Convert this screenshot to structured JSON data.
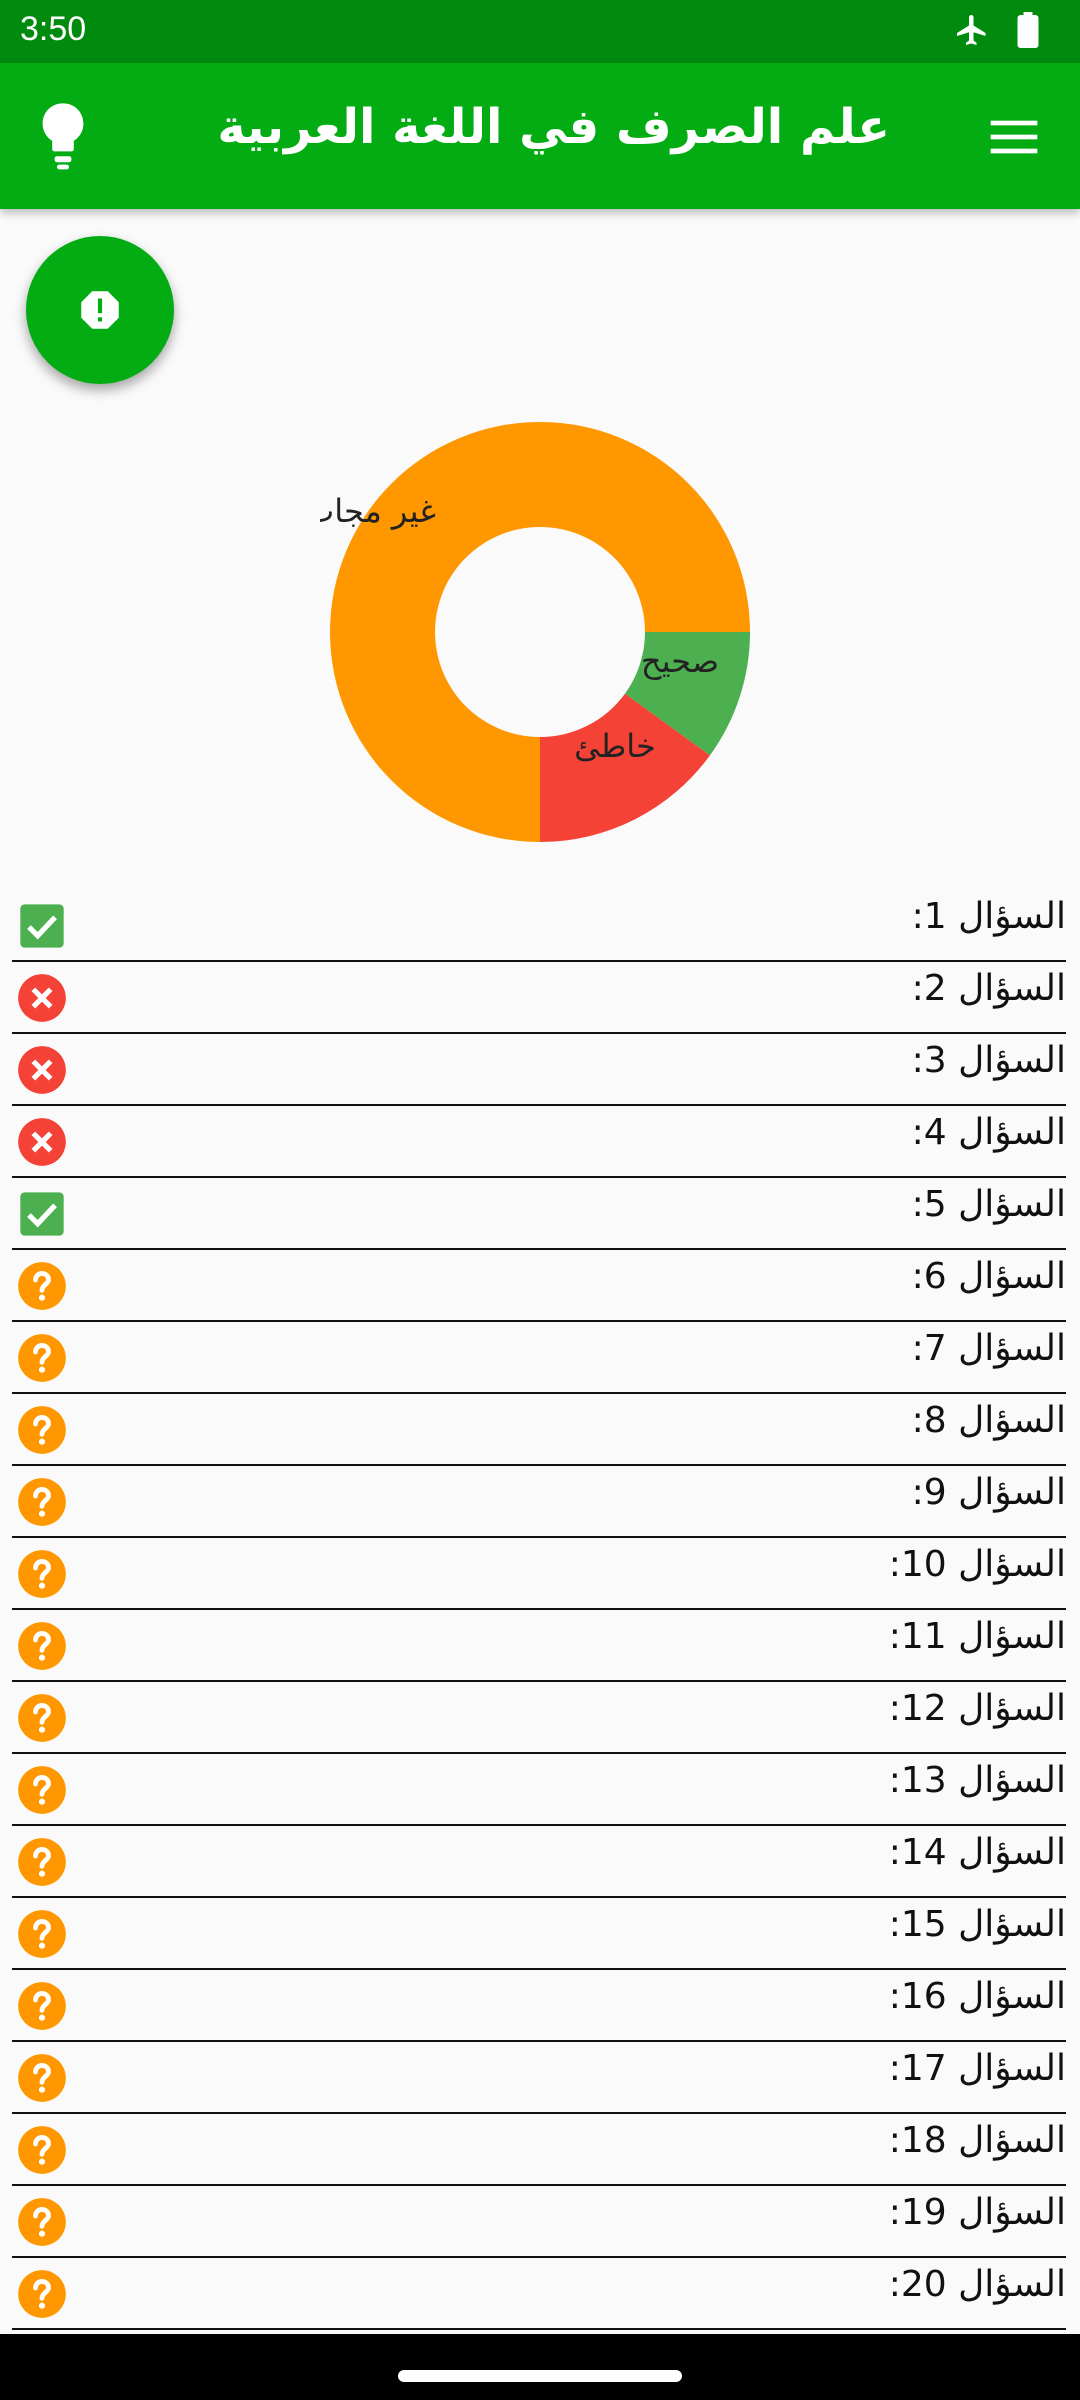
{
  "status_bar": {
    "time": "3:50"
  },
  "app_bar": {
    "title": "علم الصرف في اللغة العربية"
  },
  "chart_data": {
    "type": "pie",
    "slices": [
      {
        "label": "غير مجاب",
        "value": 75,
        "color": "#ff9800"
      },
      {
        "label": "صحيح",
        "value": 10,
        "color": "#4caf50"
      },
      {
        "label": "خاطئ",
        "value": 15,
        "color": "#f44336"
      }
    ]
  },
  "questions": [
    {
      "label": "السؤال 1:",
      "status": "correct"
    },
    {
      "label": "السؤال 2:",
      "status": "wrong"
    },
    {
      "label": "السؤال 3:",
      "status": "wrong"
    },
    {
      "label": "السؤال 4:",
      "status": "wrong"
    },
    {
      "label": "السؤال 5:",
      "status": "correct"
    },
    {
      "label": "السؤال 6:",
      "status": "unanswered"
    },
    {
      "label": "السؤال 7:",
      "status": "unanswered"
    },
    {
      "label": "السؤال 8:",
      "status": "unanswered"
    },
    {
      "label": "السؤال 9:",
      "status": "unanswered"
    },
    {
      "label": "السؤال 10:",
      "status": "unanswered"
    },
    {
      "label": "السؤال 11:",
      "status": "unanswered"
    },
    {
      "label": "السؤال 12:",
      "status": "unanswered"
    },
    {
      "label": "السؤال 13:",
      "status": "unanswered"
    },
    {
      "label": "السؤال 14:",
      "status": "unanswered"
    },
    {
      "label": "السؤال 15:",
      "status": "unanswered"
    },
    {
      "label": "السؤال 16:",
      "status": "unanswered"
    },
    {
      "label": "السؤال 17:",
      "status": "unanswered"
    },
    {
      "label": "السؤال 18:",
      "status": "unanswered"
    },
    {
      "label": "السؤال 19:",
      "status": "unanswered"
    },
    {
      "label": "السؤال 20:",
      "status": "unanswered"
    }
  ],
  "colors": {
    "primary": "#03ac13",
    "status_bar": "#008a0e",
    "correct": "#4caf50",
    "wrong": "#f44336",
    "unanswered": "#ff9800"
  },
  "icons": {
    "correct": "check-box-icon",
    "wrong": "cancel-icon",
    "unanswered": "help-icon",
    "fab": "report-icon",
    "menu": "menu-icon",
    "hint": "lightbulb-icon"
  }
}
